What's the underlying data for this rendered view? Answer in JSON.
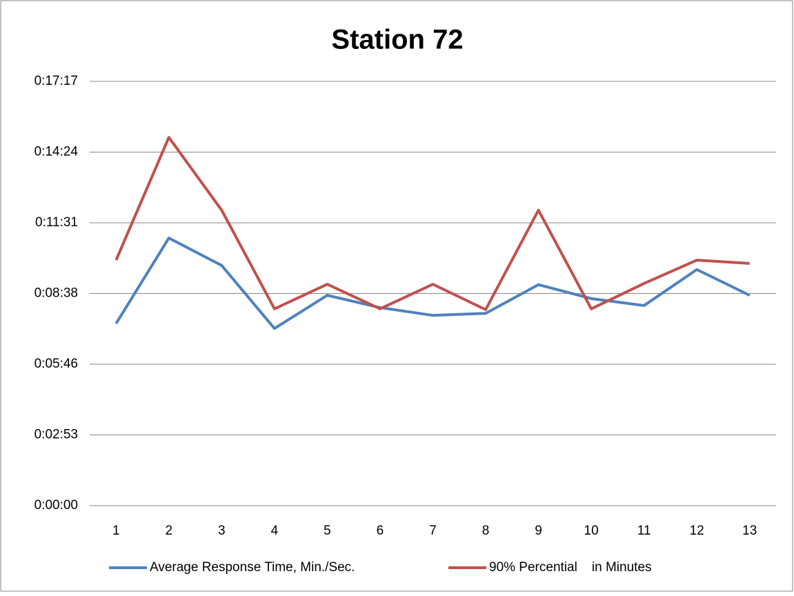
{
  "chart_data": {
    "type": "line",
    "title": "Station 72",
    "categories": [
      "1",
      "2",
      "3",
      "4",
      "5",
      "6",
      "7",
      "8",
      "9",
      "10",
      "11",
      "12",
      "13"
    ],
    "series": [
      {
        "name": "Average Response Time, Min./Sec.",
        "color": "#4f81bd",
        "values": [
          445,
          654,
          587,
          433,
          514,
          484,
          465,
          470,
          540,
          506,
          489,
          577,
          514
        ]
      },
      {
        "name": "90% Percential    in Minutes",
        "color": "#c0504d",
        "values": [
          600,
          900,
          722,
          481,
          541,
          481,
          541,
          479,
          722,
          481,
          543,
          600,
          592
        ]
      }
    ],
    "ylim": [
      0,
      1036.8
    ],
    "yticks": [
      {
        "value": 0,
        "label": "0:00:00"
      },
      {
        "value": 172.8,
        "label": "0:02:53"
      },
      {
        "value": 345.6,
        "label": "0:05:46"
      },
      {
        "value": 518.4,
        "label": "0:08:38"
      },
      {
        "value": 691.2,
        "label": "0:11:31"
      },
      {
        "value": 864,
        "label": "0:14:24"
      },
      {
        "value": 1036.8,
        "label": "0:17:17"
      }
    ],
    "grid": true,
    "legend": "bottom"
  }
}
